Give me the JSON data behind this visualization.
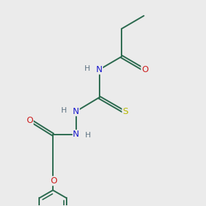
{
  "background_color": "#ebebeb",
  "figsize": [
    3.0,
    3.0
  ],
  "dpi": 100,
  "bond_color": "#2d6b50",
  "bond_lw": 1.5,
  "atom_colors": {
    "N": "#1a1acc",
    "O": "#cc1a1a",
    "S": "#b8b800",
    "H": "#5a7080"
  },
  "font_size": 8.0,
  "xlim": [
    0,
    10
  ],
  "ylim": [
    -0.5,
    10.5
  ]
}
